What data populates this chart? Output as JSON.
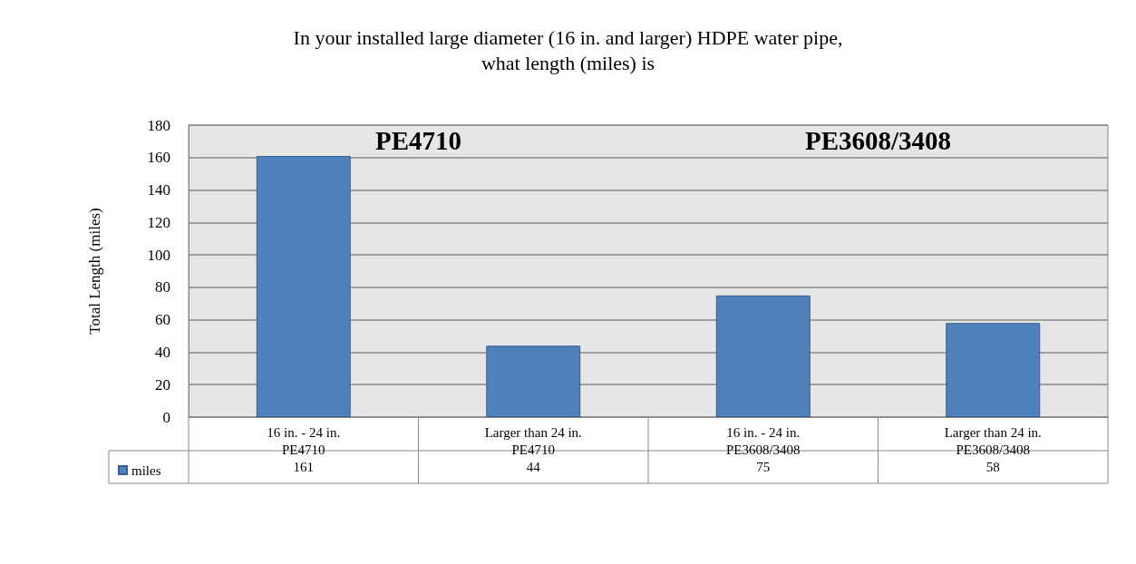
{
  "chart_data": {
    "type": "bar",
    "title": "In your installed large diameter (16 in. and larger) HDPE water pipe,\nwhat length (miles) is",
    "ylabel": "Total Length (miles)",
    "categories": [
      "16 in. - 24 in.\nPE4710",
      "Larger than 24 in.\nPE4710",
      "16 in. - 24 in.\nPE3608/3408",
      "Larger than 24 in.\nPE3608/3408"
    ],
    "series": [
      {
        "name": "miles",
        "color": "#4f81bd",
        "values": [
          161,
          44,
          75,
          58
        ]
      }
    ],
    "ylim": [
      0,
      180
    ],
    "yticks": [
      0,
      20,
      40,
      60,
      80,
      100,
      120,
      140,
      160,
      180
    ],
    "grid": "y",
    "legend": "bottom left",
    "data_labels": true,
    "annotations": [
      "PE4710",
      "PE3608/3408"
    ]
  }
}
